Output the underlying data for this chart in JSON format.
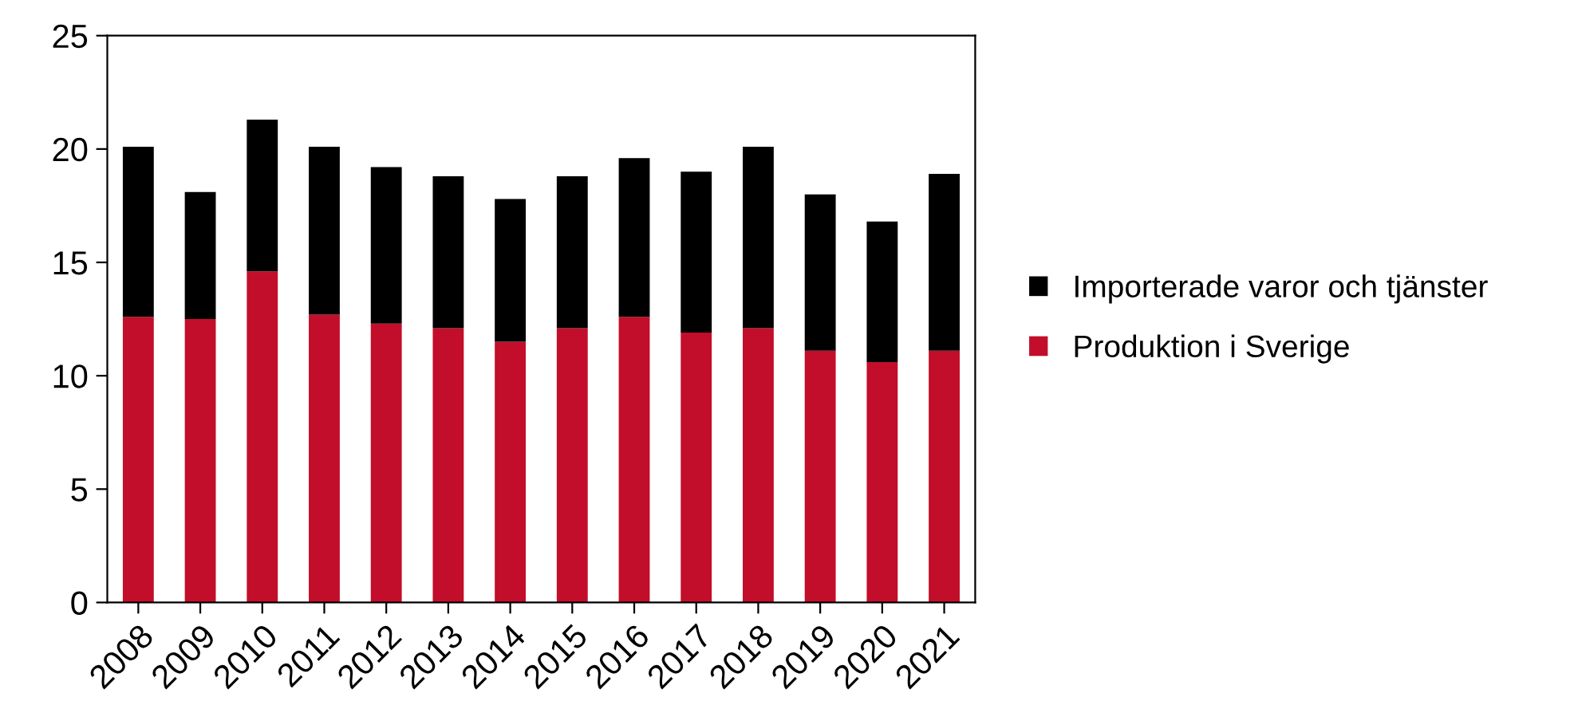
{
  "chart_data": {
    "type": "bar",
    "stacked": true,
    "categories": [
      "2008",
      "2009",
      "2010",
      "2011",
      "2012",
      "2013",
      "2014",
      "2015",
      "2016",
      "2017",
      "2018",
      "2019",
      "2020",
      "2021"
    ],
    "series": [
      {
        "name": "Produktion i Sverige",
        "color": "#c20e2a",
        "values": [
          12.6,
          12.5,
          14.6,
          12.7,
          12.3,
          12.1,
          11.5,
          12.1,
          12.6,
          11.9,
          12.1,
          11.1,
          10.6,
          11.1
        ]
      },
      {
        "name": "Importerade varor och tjänster",
        "color": "#000000",
        "values": [
          7.5,
          5.6,
          6.7,
          7.4,
          6.9,
          6.7,
          6.3,
          6.7,
          7.0,
          7.1,
          8.0,
          6.9,
          6.2,
          7.8
        ]
      }
    ],
    "ylim": [
      0,
      25
    ],
    "yticks": [
      0,
      5,
      10,
      15,
      20,
      25
    ],
    "grid": false,
    "legend": "right"
  }
}
